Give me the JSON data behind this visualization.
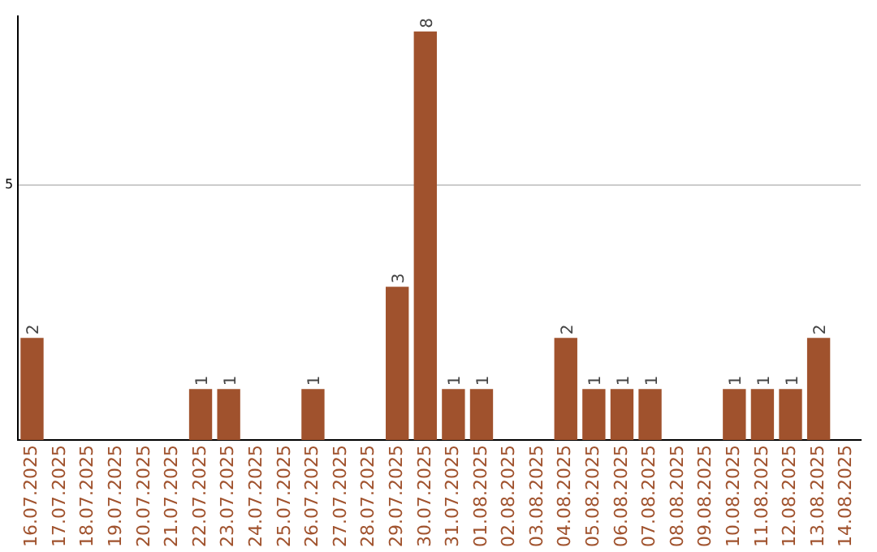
{
  "chart_data": {
    "type": "bar",
    "categories": [
      "16.07.2025",
      "17.07.2025",
      "18.07.2025",
      "19.07.2025",
      "20.07.2025",
      "21.07.2025",
      "22.07.2025",
      "23.07.2025",
      "24.07.2025",
      "25.07.2025",
      "26.07.2025",
      "27.07.2025",
      "28.07.2025",
      "29.07.2025",
      "30.07.2025",
      "31.07.2025",
      "01.08.2025",
      "02.08.2025",
      "03.08.2025",
      "04.08.2025",
      "05.08.2025",
      "06.08.2025",
      "07.08.2025",
      "08.08.2025",
      "09.08.2025",
      "10.08.2025",
      "11.08.2025",
      "12.08.2025",
      "13.08.2025",
      "14.08.2025"
    ],
    "values": [
      2,
      0,
      0,
      0,
      0,
      0,
      1,
      1,
      0,
      0,
      1,
      0,
      0,
      3,
      8,
      1,
      1,
      0,
      0,
      2,
      1,
      1,
      1,
      0,
      0,
      1,
      1,
      1,
      2,
      0
    ],
    "value_labels": [
      "2",
      null,
      null,
      null,
      null,
      null,
      "1",
      "1",
      null,
      null,
      "1",
      null,
      null,
      "3",
      "8",
      "1",
      "1",
      null,
      null,
      "2",
      "1",
      "1",
      "1",
      null,
      null,
      "1",
      "1",
      "1",
      "2",
      null
    ],
    "color": "#a0522d",
    "ylim": [
      0,
      8.3
    ],
    "yticks": [
      5
    ],
    "grid": "y",
    "legend": false
  }
}
